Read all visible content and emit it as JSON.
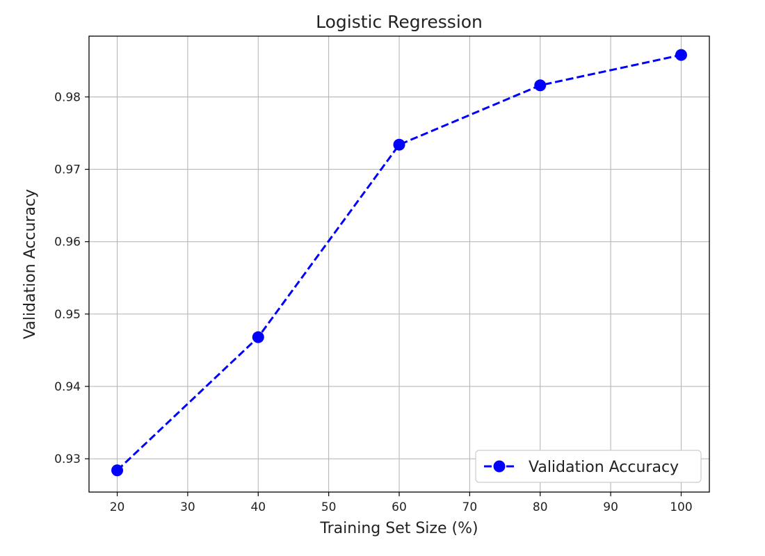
{
  "chart_data": {
    "type": "line",
    "title": "Logistic Regression",
    "xlabel": "Training Set Size (%)",
    "ylabel": "Validation Accuracy",
    "xlim": [
      16,
      104
    ],
    "ylim": [
      0.9254,
      0.9884
    ],
    "xticks": [
      20,
      30,
      40,
      50,
      60,
      70,
      80,
      90,
      100
    ],
    "yticks": [
      0.93,
      0.94,
      0.95,
      0.96,
      0.97,
      0.98
    ],
    "x_tick_labels": [
      "20",
      "30",
      "40",
      "50",
      "60",
      "70",
      "80",
      "90",
      "100"
    ],
    "y_tick_labels": [
      "0.93",
      "0.94",
      "0.95",
      "0.96",
      "0.97",
      "0.98"
    ],
    "grid": true,
    "legend_position": "lower right",
    "series": [
      {
        "name": "Validation Accuracy",
        "color": "#0000ff",
        "line_style": "dashed",
        "marker": "circle",
        "x": [
          20,
          40,
          60,
          80,
          100
        ],
        "y": [
          0.9284,
          0.9468,
          0.9734,
          0.9816,
          0.9858
        ]
      }
    ]
  }
}
